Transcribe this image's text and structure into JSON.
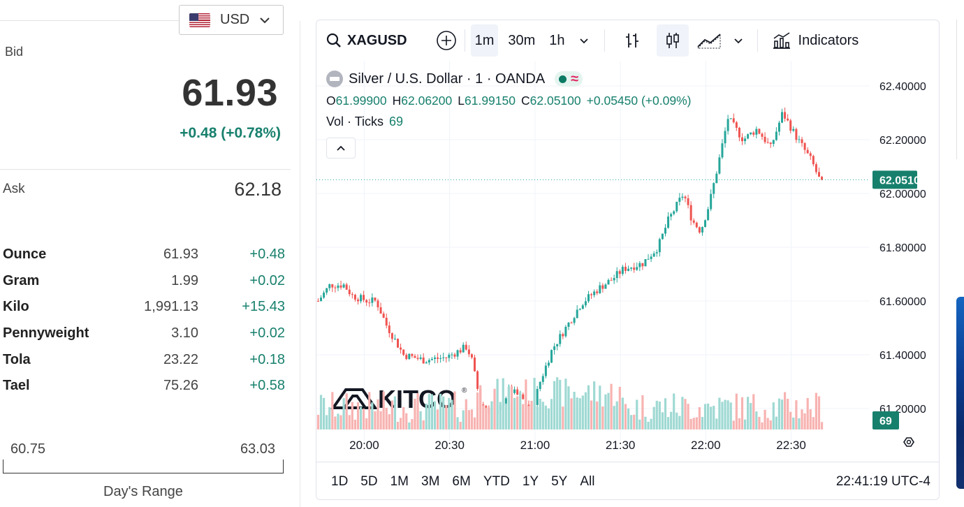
{
  "currency": {
    "code": "USD",
    "flag_icon": "us-flag-icon"
  },
  "bid": {
    "label": "Bid",
    "value": "61.93",
    "change": "+0.48 (+0.78%)"
  },
  "ask": {
    "label": "Ask",
    "value": "62.18"
  },
  "units": [
    {
      "name": "Ounce",
      "value": "61.93",
      "change": "+0.48"
    },
    {
      "name": "Gram",
      "value": "1.99",
      "change": "+0.02"
    },
    {
      "name": "Kilo",
      "value": "1,991.13",
      "change": "+15.43"
    },
    {
      "name": "Pennyweight",
      "value": "3.10",
      "change": "+0.02"
    },
    {
      "name": "Tola",
      "value": "23.22",
      "change": "+0.18"
    },
    {
      "name": "Tael",
      "value": "75.26",
      "change": "+0.58"
    }
  ],
  "day_range": {
    "low": "60.75",
    "high": "63.03",
    "label": "Day's Range"
  },
  "toolbar": {
    "symbol": "XAGUSD",
    "intervals": [
      "1m",
      "30m",
      "1h"
    ],
    "active_interval": "1m",
    "indicators_label": "Indicators"
  },
  "legend": {
    "title": "Silver / U.S. Dollar · 1 · OANDA",
    "o_key": "O",
    "o_val": "61.99900",
    "h_key": "H",
    "h_val": "62.06200",
    "l_key": "L",
    "l_val": "61.99150",
    "c_key": "C",
    "c_val": "62.05100",
    "change": "+0.05450 (+0.09%)",
    "vol_label": "Vol · Ticks",
    "vol_val": "69"
  },
  "watermark": "KITCO",
  "ranges": [
    "1D",
    "5D",
    "1M",
    "3M",
    "6M",
    "YTD",
    "1Y",
    "5Y",
    "All"
  ],
  "clock": "22:41:19 UTC-4",
  "colors": {
    "up": "#26a69a",
    "down": "#ef5350",
    "accent": "#17806d",
    "vol_up": "#9fd9d3",
    "vol_down": "#f7b3b1"
  },
  "chart_data": {
    "type": "candlestick",
    "symbol": "XAGUSD",
    "x_ticks": [
      "20:00",
      "20:30",
      "21:00",
      "21:30",
      "22:00",
      "22:30"
    ],
    "y_ticks": [
      "62.40000",
      "62.20000",
      "62.00000",
      "61.80000",
      "61.60000",
      "61.40000",
      "61.20000"
    ],
    "ylim": [
      61.05,
      62.45
    ],
    "last_price": "62.05100",
    "last_volume": "69",
    "close_path": [
      [
        19.73,
        61.6
      ],
      [
        19.8,
        61.66
      ],
      [
        19.88,
        61.66
      ],
      [
        19.93,
        61.62
      ],
      [
        20.02,
        61.6
      ],
      [
        20.07,
        61.6
      ],
      [
        20.13,
        61.51
      ],
      [
        20.23,
        61.4
      ],
      [
        20.35,
        61.38
      ],
      [
        20.48,
        61.39
      ],
      [
        20.6,
        61.43
      ],
      [
        20.63,
        61.38
      ],
      [
        20.68,
        61.22
      ],
      [
        20.77,
        61.17
      ],
      [
        20.85,
        61.27
      ],
      [
        20.92,
        61.24
      ],
      [
        20.98,
        61.19
      ],
      [
        21.03,
        61.3
      ],
      [
        21.1,
        61.42
      ],
      [
        21.18,
        61.5
      ],
      [
        21.27,
        61.59
      ],
      [
        21.38,
        61.65
      ],
      [
        21.45,
        61.68
      ],
      [
        21.52,
        61.72
      ],
      [
        21.63,
        61.74
      ],
      [
        21.72,
        61.8
      ],
      [
        21.78,
        61.9
      ],
      [
        21.87,
        62.0
      ],
      [
        21.92,
        61.9
      ],
      [
        21.97,
        61.86
      ],
      [
        22.02,
        61.96
      ],
      [
        22.07,
        62.1
      ],
      [
        22.13,
        62.28
      ],
      [
        22.22,
        62.2
      ],
      [
        22.3,
        62.24
      ],
      [
        22.38,
        62.17
      ],
      [
        22.45,
        62.3
      ],
      [
        22.53,
        62.21
      ],
      [
        22.62,
        62.12
      ],
      [
        22.68,
        62.03
      ]
    ]
  }
}
